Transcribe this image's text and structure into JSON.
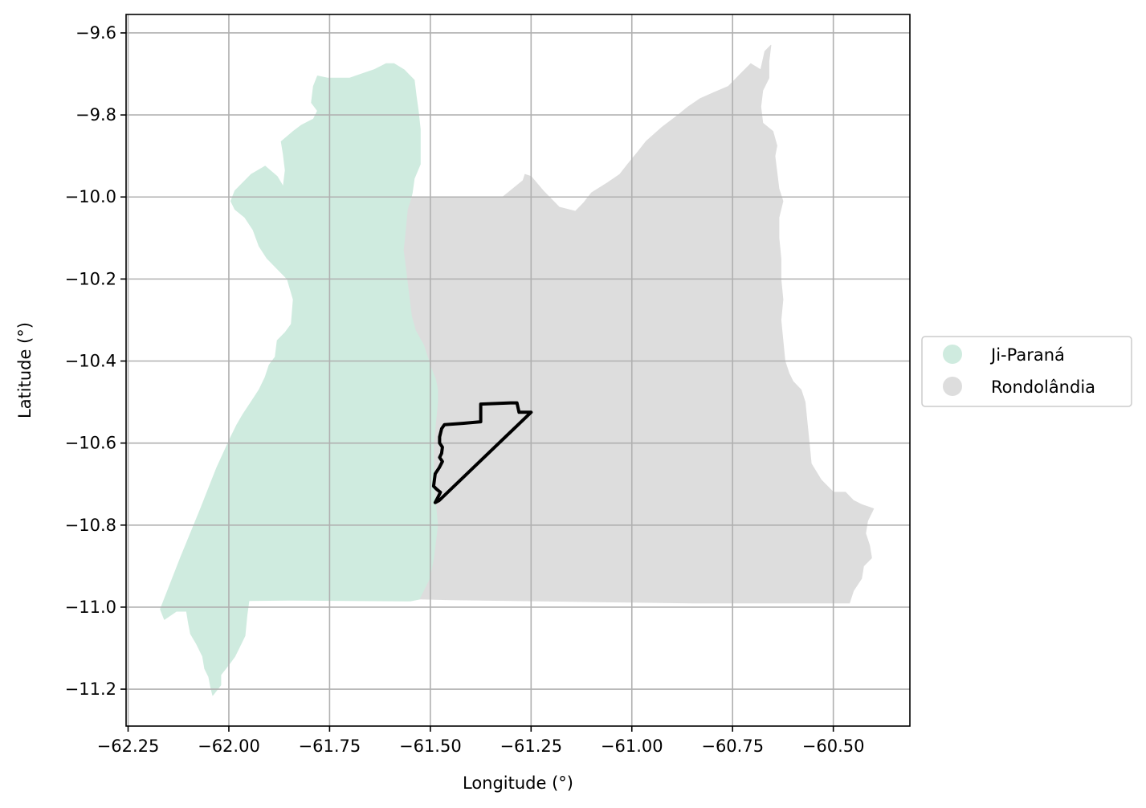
{
  "chart_data": {
    "type": "map",
    "xlabel": "Longitude (°)",
    "ylabel": "Latitude (°)",
    "xlim": [
      -62.255,
      -60.31
    ],
    "ylim": [
      -11.29,
      -9.555
    ],
    "grid": true,
    "x_ticks": [
      {
        "value": -62.25,
        "label": "−62.25"
      },
      {
        "value": -62.0,
        "label": "−62.00"
      },
      {
        "value": -61.75,
        "label": "−61.75"
      },
      {
        "value": -61.5,
        "label": "−61.50"
      },
      {
        "value": -61.25,
        "label": "−61.25"
      },
      {
        "value": -61.0,
        "label": "−61.00"
      },
      {
        "value": -60.75,
        "label": "−60.75"
      },
      {
        "value": -60.5,
        "label": "−60.50"
      }
    ],
    "y_ticks": [
      {
        "value": -9.6,
        "label": "−9.6"
      },
      {
        "value": -9.8,
        "label": "−9.8"
      },
      {
        "value": -10.0,
        "label": "−10.0"
      },
      {
        "value": -10.2,
        "label": "−10.2"
      },
      {
        "value": -10.4,
        "label": "−10.4"
      },
      {
        "value": -10.6,
        "label": "−10.6"
      },
      {
        "value": -10.8,
        "label": "−10.8"
      },
      {
        "value": -11.0,
        "label": "−11.0"
      },
      {
        "value": -11.2,
        "label": "−11.2"
      }
    ],
    "legend": {
      "placement": "center-right outside",
      "entries": [
        {
          "label": "Ji-Paraná",
          "color": "#cfebdf"
        },
        {
          "label": "Rondolândia",
          "color": "#dddddd"
        }
      ]
    },
    "regions": [
      {
        "name": "Ji-Paraná",
        "color": "#cfebdf",
        "coords": [
          [
            -61.59,
            -9.675
          ],
          [
            -61.565,
            -9.69
          ],
          [
            -61.54,
            -9.715
          ],
          [
            -61.535,
            -9.755
          ],
          [
            -61.53,
            -9.79
          ],
          [
            -61.525,
            -9.835
          ],
          [
            -61.525,
            -9.88
          ],
          [
            -61.525,
            -9.92
          ],
          [
            -61.54,
            -9.955
          ],
          [
            -61.545,
            -9.99
          ],
          [
            -61.555,
            -10.03
          ],
          [
            -61.56,
            -10.08
          ],
          [
            -61.565,
            -10.13
          ],
          [
            -61.56,
            -10.17
          ],
          [
            -61.555,
            -10.21
          ],
          [
            -61.55,
            -10.25
          ],
          [
            -61.545,
            -10.29
          ],
          [
            -61.535,
            -10.325
          ],
          [
            -61.515,
            -10.36
          ],
          [
            -61.505,
            -10.39
          ],
          [
            -61.495,
            -10.42
          ],
          [
            -61.485,
            -10.445
          ],
          [
            -61.48,
            -10.47
          ],
          [
            -61.48,
            -10.5
          ],
          [
            -61.485,
            -10.55
          ],
          [
            -61.49,
            -10.6
          ],
          [
            -61.49,
            -10.65
          ],
          [
            -61.49,
            -10.7
          ],
          [
            -61.485,
            -10.75
          ],
          [
            -61.48,
            -10.8
          ],
          [
            -61.485,
            -10.84
          ],
          [
            -61.49,
            -10.88
          ],
          [
            -61.5,
            -10.93
          ],
          [
            -61.525,
            -10.98
          ],
          [
            -61.55,
            -10.985
          ],
          [
            -61.7,
            -10.984
          ],
          [
            -61.85,
            -10.983
          ],
          [
            -61.95,
            -10.984
          ],
          [
            -61.955,
            -11.02
          ],
          [
            -61.96,
            -11.07
          ],
          [
            -61.975,
            -11.1
          ],
          [
            -61.985,
            -11.12
          ],
          [
            -62.0,
            -11.14
          ],
          [
            -62.02,
            -11.165
          ],
          [
            -62.02,
            -11.19
          ],
          [
            -62.04,
            -11.215
          ],
          [
            -62.045,
            -11.195
          ],
          [
            -62.05,
            -11.17
          ],
          [
            -62.06,
            -11.15
          ],
          [
            -62.065,
            -11.12
          ],
          [
            -62.08,
            -11.09
          ],
          [
            -62.095,
            -11.065
          ],
          [
            -62.1,
            -11.04
          ],
          [
            -62.105,
            -11.01
          ],
          [
            -62.13,
            -11.01
          ],
          [
            -62.16,
            -11.03
          ],
          [
            -62.17,
            -11.005
          ],
          [
            -62.12,
            -10.88
          ],
          [
            -62.07,
            -10.76
          ],
          [
            -62.03,
            -10.66
          ],
          [
            -61.995,
            -10.585
          ],
          [
            -61.98,
            -10.555
          ],
          [
            -61.965,
            -10.53
          ],
          [
            -61.945,
            -10.5
          ],
          [
            -61.925,
            -10.47
          ],
          [
            -61.91,
            -10.44
          ],
          [
            -61.9,
            -10.41
          ],
          [
            -61.885,
            -10.39
          ],
          [
            -61.88,
            -10.35
          ],
          [
            -61.86,
            -10.33
          ],
          [
            -61.845,
            -10.31
          ],
          [
            -61.84,
            -10.25
          ],
          [
            -61.855,
            -10.2
          ],
          [
            -61.905,
            -10.15
          ],
          [
            -61.925,
            -10.12
          ],
          [
            -61.94,
            -10.08
          ],
          [
            -61.96,
            -10.05
          ],
          [
            -61.985,
            -10.03
          ],
          [
            -61.995,
            -10.01
          ],
          [
            -61.985,
            -9.985
          ],
          [
            -61.945,
            -9.945
          ],
          [
            -61.91,
            -9.925
          ],
          [
            -61.88,
            -9.95
          ],
          [
            -61.865,
            -9.975
          ],
          [
            -61.86,
            -9.935
          ],
          [
            -61.865,
            -9.895
          ],
          [
            -61.87,
            -9.865
          ],
          [
            -61.84,
            -9.84
          ],
          [
            -61.82,
            -9.825
          ],
          [
            -61.79,
            -9.81
          ],
          [
            -61.78,
            -9.79
          ],
          [
            -61.795,
            -9.77
          ],
          [
            -61.79,
            -9.73
          ],
          [
            -61.78,
            -9.705
          ],
          [
            -61.755,
            -9.71
          ],
          [
            -61.735,
            -9.71
          ],
          [
            -61.7,
            -9.71
          ],
          [
            -61.67,
            -9.7
          ],
          [
            -61.64,
            -9.69
          ],
          [
            -61.61,
            -9.675
          ],
          [
            -61.59,
            -9.675
          ]
        ]
      },
      {
        "name": "Rondolândia",
        "color": "#dddddd",
        "coords": [
          [
            -61.525,
            -10.0
          ],
          [
            -61.4,
            -10.0
          ],
          [
            -61.32,
            -10.0
          ],
          [
            -61.27,
            -9.96
          ],
          [
            -61.265,
            -9.945
          ],
          [
            -61.25,
            -9.95
          ],
          [
            -61.22,
            -9.985
          ],
          [
            -61.2,
            -10.005
          ],
          [
            -61.18,
            -10.025
          ],
          [
            -61.14,
            -10.035
          ],
          [
            -61.12,
            -10.015
          ],
          [
            -61.1,
            -9.99
          ],
          [
            -61.06,
            -9.965
          ],
          [
            -61.03,
            -9.945
          ],
          [
            -61.01,
            -9.92
          ],
          [
            -60.985,
            -9.89
          ],
          [
            -60.965,
            -9.865
          ],
          [
            -60.925,
            -9.83
          ],
          [
            -60.885,
            -9.8
          ],
          [
            -60.86,
            -9.78
          ],
          [
            -60.83,
            -9.76
          ],
          [
            -60.795,
            -9.745
          ],
          [
            -60.76,
            -9.73
          ],
          [
            -60.73,
            -9.7
          ],
          [
            -60.705,
            -9.675
          ],
          [
            -60.68,
            -9.69
          ],
          [
            -60.67,
            -9.645
          ],
          [
            -60.655,
            -9.63
          ],
          [
            -60.66,
            -9.67
          ],
          [
            -60.66,
            -9.71
          ],
          [
            -60.675,
            -9.74
          ],
          [
            -60.68,
            -9.78
          ],
          [
            -60.675,
            -9.82
          ],
          [
            -60.65,
            -9.84
          ],
          [
            -60.64,
            -9.875
          ],
          [
            -60.645,
            -9.9
          ],
          [
            -60.64,
            -9.94
          ],
          [
            -60.635,
            -9.98
          ],
          [
            -60.625,
            -10.01
          ],
          [
            -60.635,
            -10.05
          ],
          [
            -60.635,
            -10.1
          ],
          [
            -60.63,
            -10.15
          ],
          [
            -60.63,
            -10.2
          ],
          [
            -60.625,
            -10.25
          ],
          [
            -60.63,
            -10.3
          ],
          [
            -60.625,
            -10.35
          ],
          [
            -60.62,
            -10.4
          ],
          [
            -60.61,
            -10.43
          ],
          [
            -60.6,
            -10.45
          ],
          [
            -60.58,
            -10.47
          ],
          [
            -60.57,
            -10.5
          ],
          [
            -60.565,
            -10.55
          ],
          [
            -60.56,
            -10.6
          ],
          [
            -60.555,
            -10.65
          ],
          [
            -60.53,
            -10.69
          ],
          [
            -60.5,
            -10.72
          ],
          [
            -60.47,
            -10.72
          ],
          [
            -60.45,
            -10.74
          ],
          [
            -60.43,
            -10.75
          ],
          [
            -60.4,
            -10.76
          ],
          [
            -60.415,
            -10.79
          ],
          [
            -60.42,
            -10.82
          ],
          [
            -60.41,
            -10.85
          ],
          [
            -60.405,
            -10.88
          ],
          [
            -60.425,
            -10.9
          ],
          [
            -60.43,
            -10.93
          ],
          [
            -60.45,
            -10.96
          ],
          [
            -60.46,
            -10.99
          ],
          [
            -60.55,
            -10.99
          ],
          [
            -60.7,
            -10.99
          ],
          [
            -60.85,
            -10.99
          ],
          [
            -61.0,
            -10.988
          ],
          [
            -61.15,
            -10.986
          ],
          [
            -61.3,
            -10.984
          ],
          [
            -61.45,
            -10.982
          ],
          [
            -61.525,
            -10.98
          ],
          [
            -61.5,
            -10.93
          ],
          [
            -61.49,
            -10.88
          ],
          [
            -61.485,
            -10.84
          ],
          [
            -61.48,
            -10.8
          ],
          [
            -61.485,
            -10.75
          ],
          [
            -61.49,
            -10.7
          ],
          [
            -61.49,
            -10.65
          ],
          [
            -61.49,
            -10.6
          ],
          [
            -61.485,
            -10.55
          ],
          [
            -61.48,
            -10.5
          ],
          [
            -61.48,
            -10.47
          ],
          [
            -61.485,
            -10.445
          ],
          [
            -61.495,
            -10.42
          ],
          [
            -61.505,
            -10.39
          ],
          [
            -61.515,
            -10.36
          ],
          [
            -61.535,
            -10.325
          ],
          [
            -61.545,
            -10.29
          ],
          [
            -61.55,
            -10.25
          ],
          [
            -61.555,
            -10.21
          ],
          [
            -61.56,
            -10.17
          ],
          [
            -61.565,
            -10.13
          ],
          [
            -61.56,
            -10.08
          ],
          [
            -61.555,
            -10.03
          ],
          [
            -61.545,
            -10.0
          ],
          [
            -61.525,
            -10.0
          ]
        ]
      }
    ],
    "outline": {
      "color": "#000000",
      "coords": [
        [
          -61.25,
          -10.525
        ],
        [
          -61.28,
          -10.525
        ],
        [
          -61.285,
          -10.502
        ],
        [
          -61.3,
          -10.502
        ],
        [
          -61.375,
          -10.505
        ],
        [
          -61.375,
          -10.548
        ],
        [
          -61.42,
          -10.552
        ],
        [
          -61.465,
          -10.555
        ],
        [
          -61.472,
          -10.565
        ],
        [
          -61.477,
          -10.585
        ],
        [
          -61.477,
          -10.6
        ],
        [
          -61.47,
          -10.61
        ],
        [
          -61.472,
          -10.625
        ],
        [
          -61.477,
          -10.635
        ],
        [
          -61.47,
          -10.645
        ],
        [
          -61.478,
          -10.66
        ],
        [
          -61.488,
          -10.675
        ],
        [
          -61.49,
          -10.69
        ],
        [
          -61.492,
          -10.705
        ],
        [
          -61.485,
          -10.712
        ],
        [
          -61.475,
          -10.72
        ],
        [
          -61.48,
          -10.73
        ],
        [
          -61.488,
          -10.745
        ],
        [
          -61.478,
          -10.74
        ],
        [
          -61.25,
          -10.525
        ]
      ]
    }
  }
}
